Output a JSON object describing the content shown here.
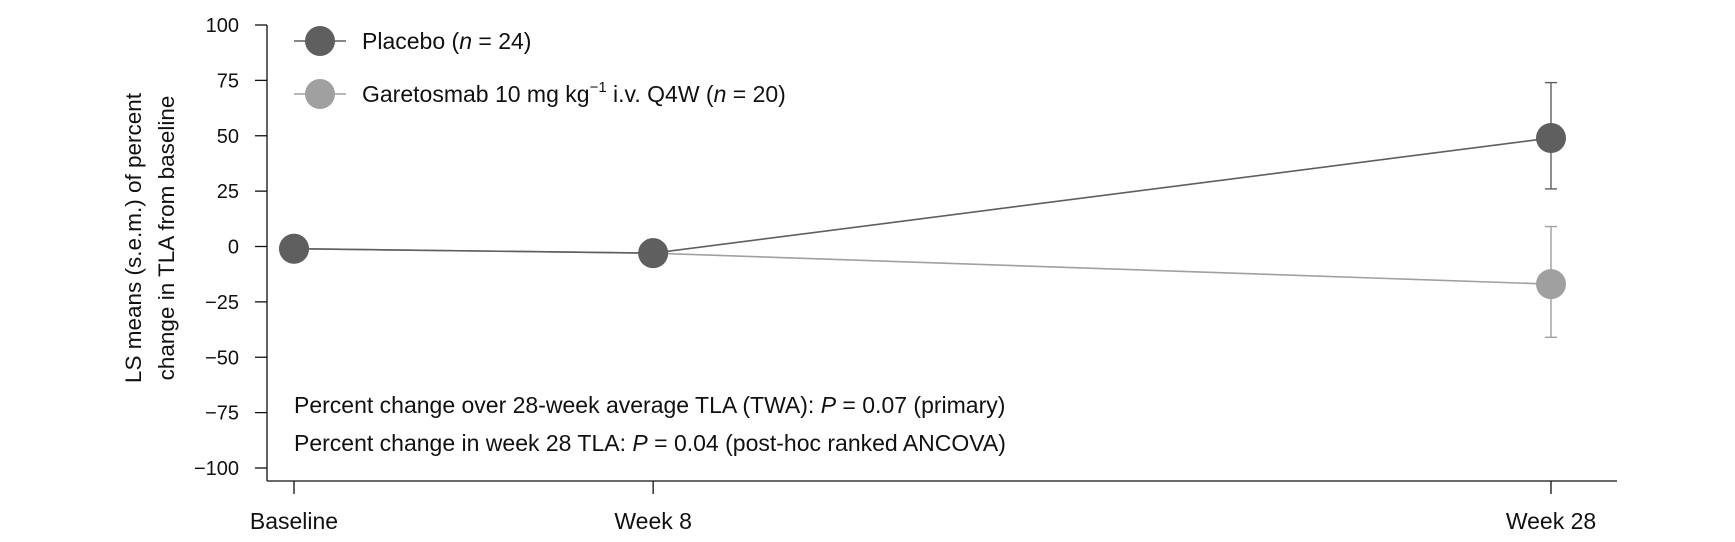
{
  "chart_data": {
    "type": "line",
    "categories": [
      "Baseline",
      "Week 8",
      "Week 28"
    ],
    "x_positions_weeks": [
      0,
      8,
      28
    ],
    "ylabel_line1": "LS means (s.e.m.) of percent",
    "ylabel_line2": "change in TLA from baseline",
    "ylim": [
      -100,
      100
    ],
    "yticks": [
      100,
      75,
      50,
      25,
      0,
      -25,
      -50,
      -75,
      -100
    ],
    "ytick_labels": [
      "100",
      "75",
      "50",
      "25",
      "0",
      "−25",
      "−50",
      "−75",
      "−100"
    ],
    "legend_position": "top-left",
    "series": [
      {
        "name": "Placebo",
        "n_label": "n",
        "n_value": "= 24)",
        "color": "#5f5f5f",
        "values": [
          -1,
          -3,
          49
        ],
        "error": [
          [
            0,
            0
          ],
          [
            -4,
            3
          ],
          [
            26,
            74
          ]
        ]
      },
      {
        "name": "Garetosmab 10 mg kg",
        "superscript": "−1",
        "suffix": " i.v. Q4W (",
        "n_label": "n",
        "n_value": "= 20)",
        "color": "#a0a0a0",
        "values": [
          -1,
          -3,
          -17
        ],
        "error": [
          [
            0,
            0
          ],
          [
            -6,
            2
          ],
          [
            -41,
            9
          ]
        ]
      }
    ],
    "annotations": [
      {
        "prefix": "Percent change over 28-week average TLA (TWA): ",
        "p": "P",
        "suffix": " = 0.07 (primary)"
      },
      {
        "prefix": "Percent change in week 28 TLA: ",
        "p": "P",
        "suffix": " = 0.04 (post-hoc ranked ANCOVA)"
      }
    ]
  }
}
